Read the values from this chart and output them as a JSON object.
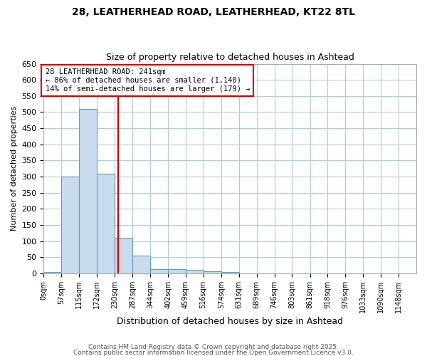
{
  "title1": "28, LEATHERHEAD ROAD, LEATHERHEAD, KT22 8TL",
  "title2": "Size of property relative to detached houses in Ashtead",
  "xlabel": "Distribution of detached houses by size in Ashtead",
  "ylabel": "Number of detached properties",
  "bin_edges": [
    0,
    57,
    115,
    172,
    230,
    287,
    344,
    402,
    459,
    516,
    574,
    631,
    689,
    746,
    803,
    861,
    918,
    976,
    1033,
    1090,
    1148,
    1205
  ],
  "bar_heights": [
    4,
    300,
    510,
    310,
    110,
    55,
    13,
    13,
    10,
    7,
    5,
    0,
    0,
    0,
    0,
    0,
    0,
    0,
    0,
    0,
    0
  ],
  "bar_color": "#c8dcee",
  "bar_edgecolor": "#6699bb",
  "vline_x": 241,
  "vline_color": "#cc0000",
  "annotation_text": "28 LEATHERHEAD ROAD: 241sqm\n← 86% of detached houses are smaller (1,140)\n14% of semi-detached houses are larger (179) →",
  "annotation_box_color": "#cc0000",
  "ylim": [
    0,
    650
  ],
  "yticks": [
    0,
    50,
    100,
    150,
    200,
    250,
    300,
    350,
    400,
    450,
    500,
    550,
    600,
    650
  ],
  "tick_labels": [
    "0sqm",
    "57sqm",
    "115sqm",
    "172sqm",
    "230sqm",
    "287sqm",
    "344sqm",
    "402sqm",
    "459sqm",
    "516sqm",
    "574sqm",
    "631sqm",
    "689sqm",
    "746sqm",
    "803sqm",
    "861sqm",
    "918sqm",
    "976sqm",
    "1033sqm",
    "1090sqm",
    "1148sqm"
  ],
  "footer1": "Contains HM Land Registry data © Crown copyright and database right 2025.",
  "footer2": "Contains public sector information licensed under the Open Government Licence v3.0.",
  "bg_color": "#ffffff",
  "plot_bg_color": "#ffffff",
  "grid_color": "#aaccdd"
}
